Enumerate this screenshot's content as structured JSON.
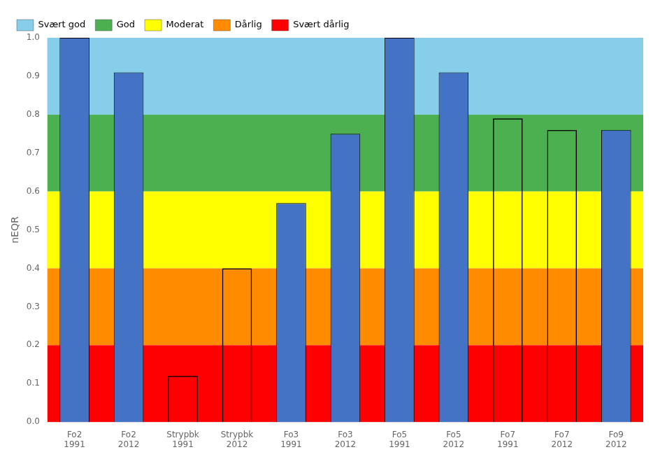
{
  "chart_data": {
    "type": "bar",
    "categories": [
      "Fo2\n1991",
      "Fo2\n2012",
      "Strypbk\n1991",
      "Strypbk\n2012",
      "Fo3\n1991",
      "Fo3\n2012",
      "Fo5\n1991",
      "Fo5\n2012",
      "Fo7\n1991",
      "Fo7\n2012",
      "Fo9\n2012"
    ],
    "values": [
      1.0,
      0.91,
      0.12,
      0.4,
      0.57,
      0.75,
      1.0,
      0.91,
      0.79,
      0.76,
      0.76
    ],
    "colors": [
      "#4472C4",
      "#4472C4",
      "none",
      "none",
      "#4472C4",
      "#4472C4",
      "#4472C4",
      "#4472C4",
      "none",
      "none",
      "#4472C4"
    ],
    "ylabel": "nEQR",
    "ylim": [
      0,
      1.0
    ],
    "yticks": [
      {
        "value": 0.0,
        "label": "0.0"
      },
      0.1,
      0.2,
      0.3,
      0.4,
      0.5,
      0.6,
      0.7,
      0.8,
      0.9,
      {
        "value": 1.0,
        "label": "1.0"
      }
    ],
    "background_zones": [
      {
        "name": "Svært god",
        "ymin": 0.8,
        "ymax": 1.0,
        "color": "#87CEEB"
      },
      {
        "name": "God",
        "ymin": 0.6,
        "ymax": 0.8,
        "color": "#4CAF50"
      },
      {
        "name": "Moderat",
        "ymin": 0.4,
        "ymax": 0.6,
        "color": "#FFFF00"
      },
      {
        "name": "Dårlig",
        "ymin": 0.2,
        "ymax": 0.4,
        "color": "#FF8C00"
      },
      {
        "name": "Svært dårlig",
        "ymin": 0.0,
        "ymax": 0.2,
        "color": "#FF0000"
      }
    ],
    "legend": "upper left",
    "grid": false
  }
}
